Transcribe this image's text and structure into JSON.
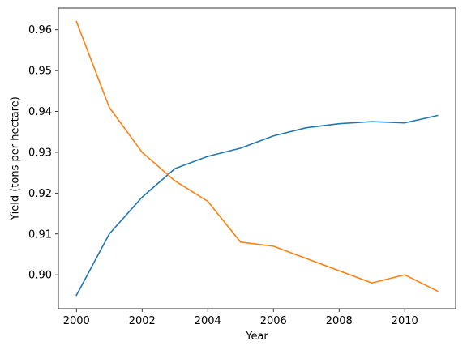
{
  "chart_data": {
    "type": "line",
    "title": "",
    "xlabel": "Year",
    "ylabel": "Yield (tons per hectare)",
    "xlim": [
      1999.45,
      2011.55
    ],
    "ylim": [
      0.8917,
      0.9653
    ],
    "xticks": [
      2000,
      2002,
      2004,
      2006,
      2008,
      2010
    ],
    "yticks": [
      0.9,
      0.91,
      0.92,
      0.93,
      0.94,
      0.95,
      0.96
    ],
    "ytick_labels": [
      "0.90",
      "0.91",
      "0.92",
      "0.93",
      "0.94",
      "0.95",
      "0.96"
    ],
    "grid": false,
    "x": [
      2000,
      2001,
      2002,
      2003,
      2004,
      2005,
      2006,
      2007,
      2008,
      2009,
      2010,
      2011
    ],
    "series": [
      {
        "color": "#1f77b4",
        "values": [
          0.895,
          0.91,
          0.919,
          0.926,
          0.929,
          0.931,
          0.934,
          0.936,
          0.937,
          0.9375,
          0.9372,
          0.939
        ]
      },
      {
        "color": "#ff7f0e",
        "values": [
          0.962,
          0.941,
          0.93,
          0.923,
          0.918,
          0.908,
          0.907,
          0.904,
          0.901,
          0.898,
          0.9,
          0.896
        ]
      }
    ]
  }
}
